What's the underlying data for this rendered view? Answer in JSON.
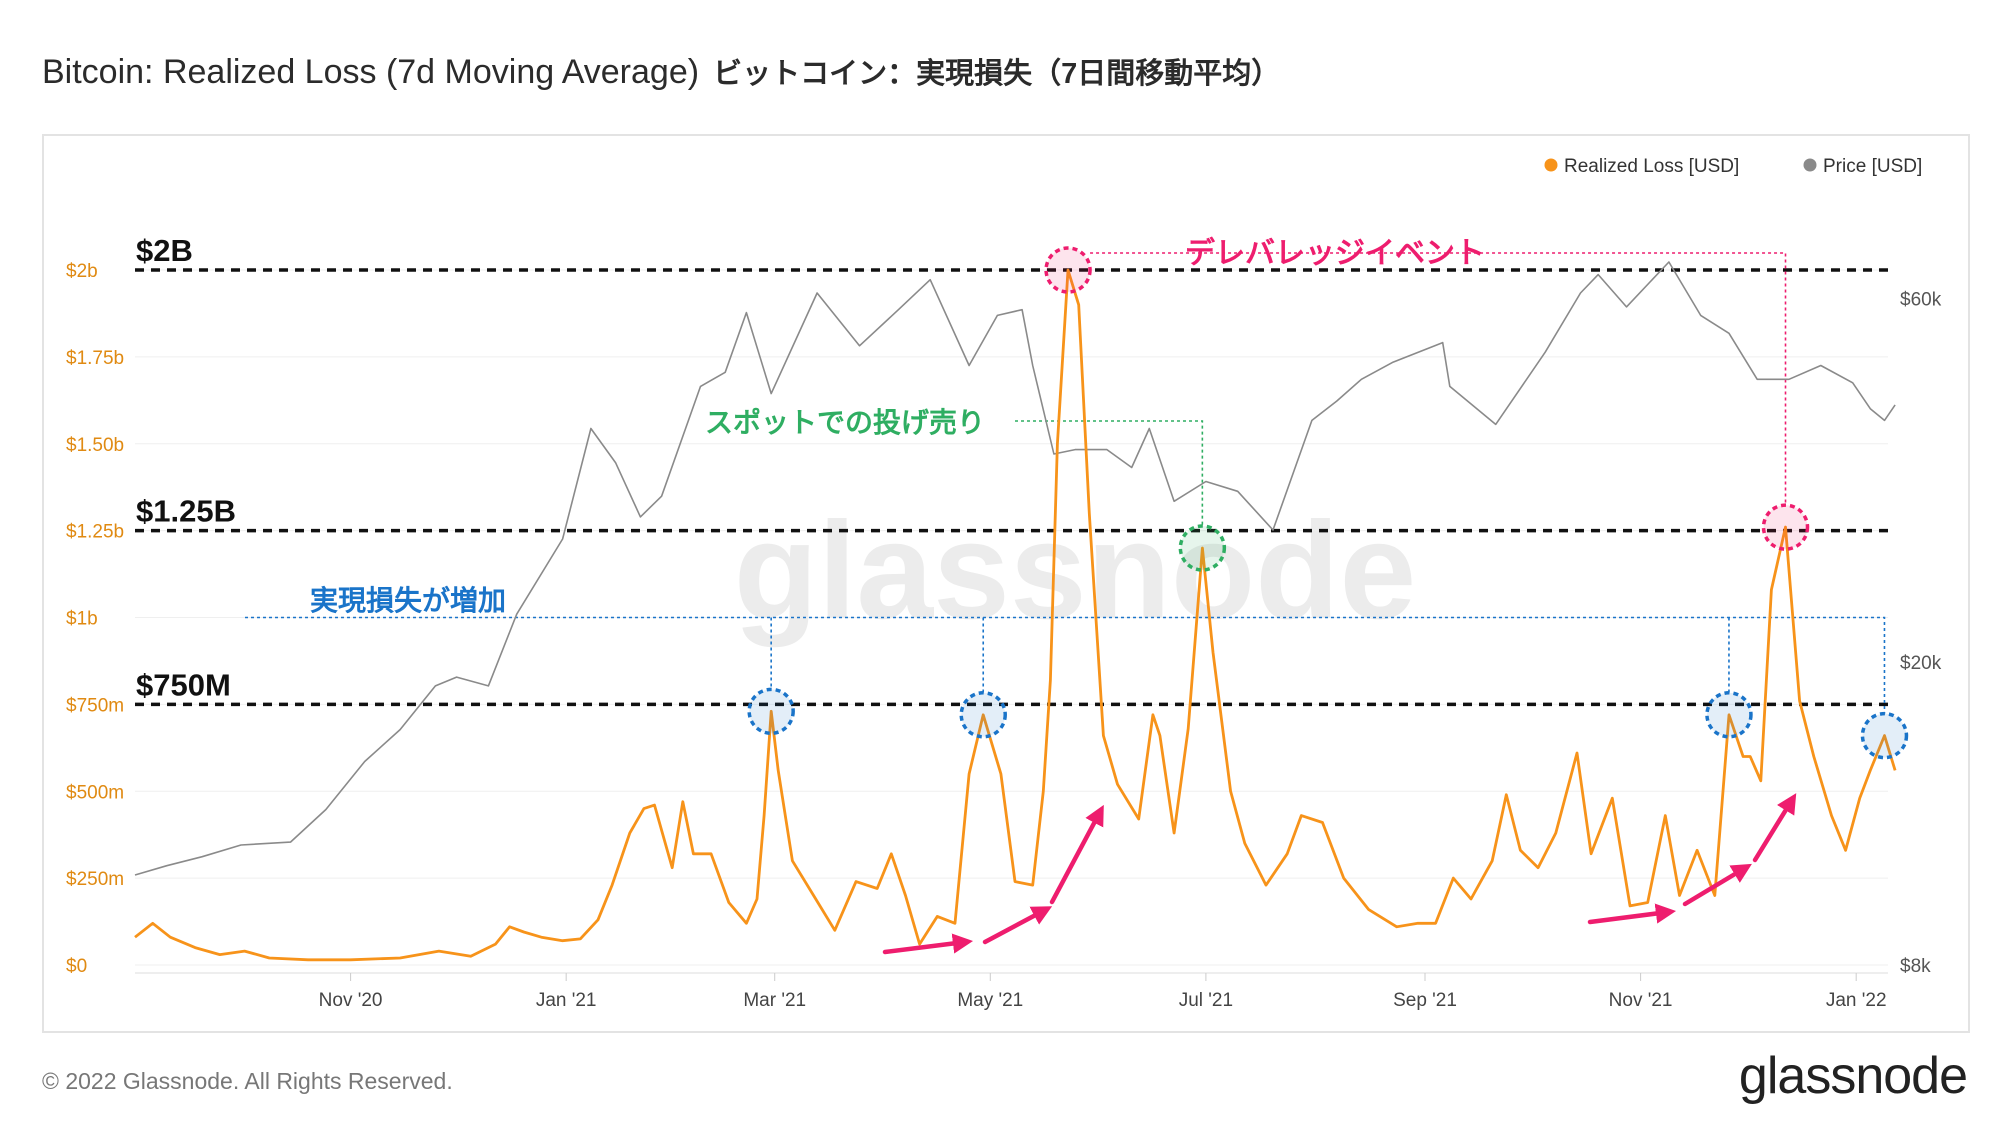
{
  "title": "Bitcoin: Realized Loss (7d Moving Average)",
  "title_jp": "ビットコイン：実現損失（7日間移動平均）",
  "footer": {
    "copyright": "© 2022 Glassnode. All Rights Reserved.",
    "logo": "glassnode"
  },
  "watermark": "glassnode",
  "colors": {
    "loss": "#f7931a",
    "price": "#8a8a8a",
    "pink": "#ee1d6e",
    "green": "#2fae62",
    "blue": "#1a74c9"
  },
  "chart_data": {
    "type": "line",
    "legend": [
      {
        "label": "Realized Loss [USD]",
        "color": "#f7931a"
      },
      {
        "label": "Price [USD]",
        "color": "#8a8a8a"
      }
    ],
    "legend_position": "top-right",
    "x_range": [
      "2020-09-01",
      "2022-01-10"
    ],
    "x_ticks": [
      {
        "label": "Nov '20",
        "date": "2020-11-01"
      },
      {
        "label": "Jan '21",
        "date": "2021-01-01"
      },
      {
        "label": "Mar '21",
        "date": "2021-03-01"
      },
      {
        "label": "May '21",
        "date": "2021-05-01"
      },
      {
        "label": "Jul '21",
        "date": "2021-07-01"
      },
      {
        "label": "Sep '21",
        "date": "2021-09-01"
      },
      {
        "label": "Nov '21",
        "date": "2021-11-01"
      },
      {
        "label": "Jan '22",
        "date": "2022-01-01"
      }
    ],
    "y_left": {
      "unit": "USD",
      "ylim": [
        0,
        2000000000
      ],
      "ticks": [
        {
          "label": "$0",
          "value": 0
        },
        {
          "label": "$250m",
          "value": 250000000
        },
        {
          "label": "$500m",
          "value": 500000000
        },
        {
          "label": "$750m",
          "value": 750000000
        },
        {
          "label": "$1b",
          "value": 1000000000
        },
        {
          "label": "$1.25b",
          "value": 1250000000
        },
        {
          "label": "$1.50b",
          "value": 1500000000
        },
        {
          "label": "$1.75b",
          "value": 1750000000
        },
        {
          "label": "$2b",
          "value": 2000000000
        }
      ]
    },
    "y_right": {
      "unit": "USD",
      "scale": "log",
      "ylim": [
        8000,
        65000
      ],
      "ticks": [
        {
          "label": "$8k",
          "value": 8000
        },
        {
          "label": "$20k",
          "value": 20000
        },
        {
          "label": "$60k",
          "value": 60000
        }
      ]
    },
    "series": [
      {
        "name": "Realized Loss [USD]",
        "unit": "USD",
        "points": [
          [
            "2020-09-01",
            80000000
          ],
          [
            "2020-09-06",
            120000000
          ],
          [
            "2020-09-11",
            80000000
          ],
          [
            "2020-09-18",
            50000000
          ],
          [
            "2020-09-25",
            30000000
          ],
          [
            "2020-10-02",
            40000000
          ],
          [
            "2020-10-09",
            20000000
          ],
          [
            "2020-10-20",
            15000000
          ],
          [
            "2020-11-01",
            15000000
          ],
          [
            "2020-11-15",
            20000000
          ],
          [
            "2020-11-26",
            40000000
          ],
          [
            "2020-12-05",
            25000000
          ],
          [
            "2020-12-12",
            60000000
          ],
          [
            "2020-12-16",
            110000000
          ],
          [
            "2020-12-20",
            95000000
          ],
          [
            "2020-12-25",
            80000000
          ],
          [
            "2020-12-31",
            70000000
          ],
          [
            "2021-01-05",
            75000000
          ],
          [
            "2021-01-10",
            130000000
          ],
          [
            "2021-01-14",
            230000000
          ],
          [
            "2021-01-19",
            380000000
          ],
          [
            "2021-01-23",
            450000000
          ],
          [
            "2021-01-26",
            460000000
          ],
          [
            "2021-01-31",
            280000000
          ],
          [
            "2021-02-03",
            470000000
          ],
          [
            "2021-02-06",
            320000000
          ],
          [
            "2021-02-11",
            320000000
          ],
          [
            "2021-02-16",
            180000000
          ],
          [
            "2021-02-21",
            120000000
          ],
          [
            "2021-02-24",
            190000000
          ],
          [
            "2021-02-26",
            430000000
          ],
          [
            "2021-02-28",
            730000000
          ],
          [
            "2021-03-02",
            560000000
          ],
          [
            "2021-03-06",
            300000000
          ],
          [
            "2021-03-12",
            200000000
          ],
          [
            "2021-03-18",
            100000000
          ],
          [
            "2021-03-24",
            240000000
          ],
          [
            "2021-03-30",
            220000000
          ],
          [
            "2021-04-03",
            320000000
          ],
          [
            "2021-04-07",
            200000000
          ],
          [
            "2021-04-11",
            60000000
          ],
          [
            "2021-04-16",
            140000000
          ],
          [
            "2021-04-21",
            120000000
          ],
          [
            "2021-04-25",
            550000000
          ],
          [
            "2021-04-29",
            720000000
          ],
          [
            "2021-05-04",
            550000000
          ],
          [
            "2021-05-08",
            240000000
          ],
          [
            "2021-05-13",
            230000000
          ],
          [
            "2021-05-16",
            500000000
          ],
          [
            "2021-05-18",
            820000000
          ],
          [
            "2021-05-20",
            1500000000
          ],
          [
            "2021-05-23",
            2000000000
          ],
          [
            "2021-05-26",
            1900000000
          ],
          [
            "2021-05-29",
            1300000000
          ],
          [
            "2021-06-02",
            660000000
          ],
          [
            "2021-06-06",
            520000000
          ],
          [
            "2021-06-12",
            420000000
          ],
          [
            "2021-06-16",
            720000000
          ],
          [
            "2021-06-18",
            660000000
          ],
          [
            "2021-06-22",
            380000000
          ],
          [
            "2021-06-26",
            680000000
          ],
          [
            "2021-06-30",
            1200000000
          ],
          [
            "2021-07-03",
            900000000
          ],
          [
            "2021-07-08",
            500000000
          ],
          [
            "2021-07-12",
            350000000
          ],
          [
            "2021-07-18",
            230000000
          ],
          [
            "2021-07-24",
            320000000
          ],
          [
            "2021-07-28",
            430000000
          ],
          [
            "2021-08-03",
            410000000
          ],
          [
            "2021-08-09",
            250000000
          ],
          [
            "2021-08-16",
            160000000
          ],
          [
            "2021-08-24",
            110000000
          ],
          [
            "2021-08-30",
            120000000
          ],
          [
            "2021-09-04",
            120000000
          ],
          [
            "2021-09-09",
            250000000
          ],
          [
            "2021-09-14",
            190000000
          ],
          [
            "2021-09-20",
            300000000
          ],
          [
            "2021-09-24",
            490000000
          ],
          [
            "2021-09-28",
            330000000
          ],
          [
            "2021-10-03",
            280000000
          ],
          [
            "2021-10-08",
            380000000
          ],
          [
            "2021-10-14",
            610000000
          ],
          [
            "2021-10-18",
            320000000
          ],
          [
            "2021-10-24",
            480000000
          ],
          [
            "2021-10-29",
            170000000
          ],
          [
            "2021-11-03",
            180000000
          ],
          [
            "2021-11-08",
            430000000
          ],
          [
            "2021-11-12",
            200000000
          ],
          [
            "2021-11-17",
            330000000
          ],
          [
            "2021-11-22",
            200000000
          ],
          [
            "2021-11-26",
            720000000
          ],
          [
            "2021-11-30",
            600000000
          ],
          [
            "2021-12-02",
            600000000
          ],
          [
            "2021-12-05",
            530000000
          ],
          [
            "2021-12-08",
            1080000000
          ],
          [
            "2021-12-12",
            1260000000
          ],
          [
            "2021-12-16",
            760000000
          ],
          [
            "2021-12-20",
            600000000
          ],
          [
            "2021-12-25",
            430000000
          ],
          [
            "2021-12-29",
            330000000
          ],
          [
            "2022-01-02",
            480000000
          ],
          [
            "2022-01-05",
            560000000
          ],
          [
            "2022-01-09",
            660000000
          ],
          [
            "2022-01-12",
            560000000
          ]
        ]
      },
      {
        "name": "Price [USD]",
        "unit": "USD",
        "points": [
          [
            "2020-09-01",
            10500
          ],
          [
            "2020-09-10",
            10800
          ],
          [
            "2020-09-20",
            11100
          ],
          [
            "2020-10-01",
            11500
          ],
          [
            "2020-10-15",
            11600
          ],
          [
            "2020-10-25",
            12800
          ],
          [
            "2020-11-05",
            14800
          ],
          [
            "2020-11-15",
            16300
          ],
          [
            "2020-11-25",
            18600
          ],
          [
            "2020-12-01",
            19100
          ],
          [
            "2020-12-10",
            18600
          ],
          [
            "2020-12-18",
            23100
          ],
          [
            "2020-12-31",
            29000
          ],
          [
            "2021-01-08",
            40500
          ],
          [
            "2021-01-15",
            36500
          ],
          [
            "2021-01-22",
            31000
          ],
          [
            "2021-01-28",
            33000
          ],
          [
            "2021-02-08",
            46000
          ],
          [
            "2021-02-15",
            48000
          ],
          [
            "2021-02-21",
            57500
          ],
          [
            "2021-02-28",
            45000
          ],
          [
            "2021-03-13",
            61000
          ],
          [
            "2021-03-25",
            52000
          ],
          [
            "2021-04-05",
            58000
          ],
          [
            "2021-04-14",
            63500
          ],
          [
            "2021-04-25",
            49000
          ],
          [
            "2021-05-03",
            57000
          ],
          [
            "2021-05-10",
            58000
          ],
          [
            "2021-05-13",
            49000
          ],
          [
            "2021-05-19",
            37500
          ],
          [
            "2021-05-25",
            38000
          ],
          [
            "2021-06-03",
            38000
          ],
          [
            "2021-06-10",
            36000
          ],
          [
            "2021-06-15",
            40500
          ],
          [
            "2021-06-22",
            32500
          ],
          [
            "2021-07-01",
            34500
          ],
          [
            "2021-07-10",
            33500
          ],
          [
            "2021-07-20",
            29800
          ],
          [
            "2021-07-31",
            41500
          ],
          [
            "2021-08-07",
            44000
          ],
          [
            "2021-08-14",
            47000
          ],
          [
            "2021-08-23",
            49500
          ],
          [
            "2021-09-06",
            52500
          ],
          [
            "2021-09-08",
            46000
          ],
          [
            "2021-09-21",
            41000
          ],
          [
            "2021-10-05",
            51000
          ],
          [
            "2021-10-15",
            61000
          ],
          [
            "2021-10-20",
            64500
          ],
          [
            "2021-10-28",
            58500
          ],
          [
            "2021-11-09",
            67000
          ],
          [
            "2021-11-18",
            57000
          ],
          [
            "2021-11-26",
            54000
          ],
          [
            "2021-12-04",
            47000
          ],
          [
            "2021-12-13",
            47000
          ],
          [
            "2021-12-22",
            49000
          ],
          [
            "2021-12-31",
            46500
          ],
          [
            "2022-01-05",
            43000
          ],
          [
            "2022-01-09",
            41500
          ],
          [
            "2022-01-12",
            43500
          ]
        ]
      }
    ],
    "annotations": {
      "levels": [
        {
          "label": "$2B",
          "value": 2000000000
        },
        {
          "label": "$1.25B",
          "value": 1250000000
        },
        {
          "label": "$750M",
          "value": 750000000
        }
      ],
      "texts": [
        {
          "id": "deleveraging",
          "text": "デレバレッジイベント",
          "color": "#ee1d6e"
        },
        {
          "id": "spot",
          "text": "スポットでの投げ売り",
          "color": "#2fae62"
        },
        {
          "id": "increase",
          "text": "実現損失が増加",
          "color": "#1a74c9"
        }
      ],
      "circles": [
        {
          "date": "2021-05-23",
          "value": 2000000000,
          "color": "#ee1d6e"
        },
        {
          "date": "2021-12-12",
          "value": 1260000000,
          "color": "#ee1d6e"
        },
        {
          "date": "2021-06-30",
          "value": 1200000000,
          "color": "#2fae62"
        },
        {
          "date": "2021-02-28",
          "value": 730000000,
          "color": "#1a74c9"
        },
        {
          "date": "2021-04-29",
          "value": 720000000,
          "color": "#1a74c9"
        },
        {
          "date": "2021-11-26",
          "value": 720000000,
          "color": "#1a74c9"
        },
        {
          "date": "2022-01-09",
          "value": 660000000,
          "color": "#1a74c9"
        }
      ]
    }
  }
}
